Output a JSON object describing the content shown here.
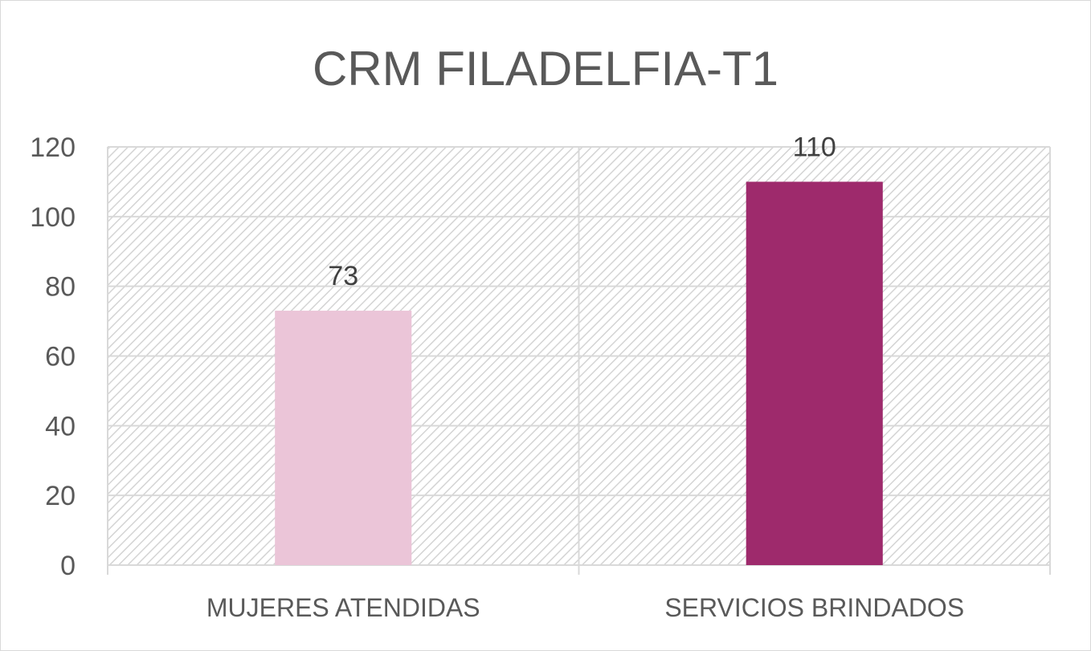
{
  "chart_data": {
    "type": "bar",
    "title": "CRM FILADELFIA-T1",
    "categories": [
      "MUJERES ATENDIDAS",
      "SERVICIOS BRINDADOS"
    ],
    "values": [
      73,
      110
    ],
    "data_labels": [
      "73",
      "110"
    ],
    "bar_colors": [
      "#ebc5d8",
      "#9e2a6c"
    ],
    "ylim": [
      0,
      120
    ],
    "yticks": [
      0,
      20,
      40,
      60,
      80,
      100,
      120
    ],
    "grid": true,
    "plot_background": "hatched-gray",
    "legend": "none"
  }
}
